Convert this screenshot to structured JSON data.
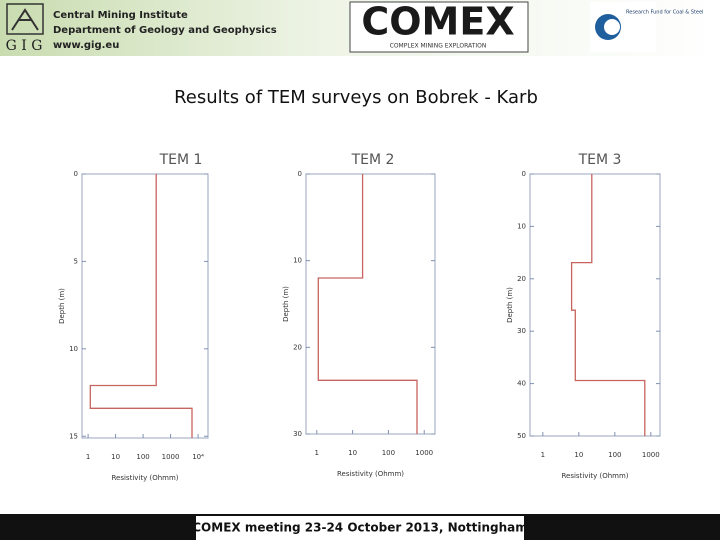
{
  "header": {
    "institute": "Central Mining Institute",
    "department": "Department of Geology and Geophysics",
    "website": "www.gig.eu",
    "gig_logo": "G I G",
    "comex_logo": "COMEX",
    "comex_tagline": "COMPLEX MINING EXPLORATION",
    "fund_logo": "Research Fund for Coal & Steel"
  },
  "title": "Results of TEM surveys on Bobrek - Karb",
  "footer": "COMEX meeting 23-24 October 2013, Nottingham",
  "chart_data": [
    {
      "type": "line",
      "title": "TEM 1",
      "x_label": "Resistivity (Ohmm)",
      "y_label": "Depth (m)",
      "x_log": true,
      "y_inverted": true,
      "xlim": [
        0.6,
        23000
      ],
      "ylim": [
        0,
        15.1
      ],
      "xticks": [
        1,
        10,
        100,
        1000,
        {
          "value": 10000,
          "label": "10⁴"
        }
      ],
      "yticks": [
        0,
        5,
        10,
        15
      ],
      "series": [
        {
          "color": "#c8645f",
          "x": [
            300,
            300,
            1.2,
            1.2,
            6000,
            6000
          ],
          "y": [
            0,
            12.1,
            12.1,
            13.4,
            13.4,
            15.1
          ]
        }
      ]
    },
    {
      "type": "line",
      "title": "TEM 2",
      "x_label": "Resistivity (Ohmm)",
      "y_label": "Depth (m)",
      "x_log": true,
      "y_inverted": true,
      "xlim": [
        0.5,
        2000
      ],
      "ylim": [
        0,
        30
      ],
      "xticks": [
        1,
        10,
        100,
        1000
      ],
      "yticks": [
        0,
        10,
        20,
        30
      ],
      "series": [
        {
          "color": "#c8645f",
          "x": [
            19,
            19,
            1.1,
            1.1,
            630,
            630
          ],
          "y": [
            0,
            12,
            12,
            23.8,
            23.8,
            30
          ]
        }
      ]
    },
    {
      "type": "line",
      "title": "TEM 3",
      "x_label": "Resistivity (Ohmm)",
      "y_label": "Depth (m)",
      "x_log": true,
      "y_inverted": true,
      "xlim": [
        0.44,
        1800
      ],
      "ylim": [
        0,
        50
      ],
      "xticks": [
        1,
        10,
        100,
        1000
      ],
      "yticks": [
        0,
        10,
        20,
        30,
        40,
        50
      ],
      "series": [
        {
          "color": "#c8645f",
          "x": [
            23,
            23,
            6.3,
            6.3,
            8,
            8,
            680,
            680
          ],
          "y": [
            0,
            16.9,
            16.9,
            26,
            26,
            39.4,
            39.4,
            50
          ]
        }
      ]
    }
  ]
}
